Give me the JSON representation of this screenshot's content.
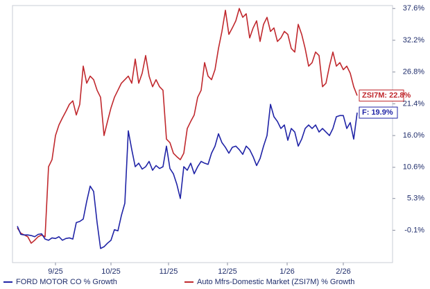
{
  "chart_data": {
    "type": "line",
    "grid": false,
    "legend": "bottom",
    "xlim": [
      -1.4,
      108.2
    ],
    "ylim": [
      -5.6,
      38.1
    ],
    "xticks": [
      {
        "value": 11,
        "label": "9/25"
      },
      {
        "value": 27,
        "label": "10/25"
      },
      {
        "value": 43.6,
        "label": "11/25"
      },
      {
        "value": 60.6,
        "label": "12/25"
      },
      {
        "value": 77.8,
        "label": "1/26"
      },
      {
        "value": 94,
        "label": "2/26"
      }
    ],
    "yticks": [
      {
        "value": 37.6,
        "label": "37.6%"
      },
      {
        "value": 32.2,
        "label": "32.2%"
      },
      {
        "value": 26.8,
        "label": "26.8%"
      },
      {
        "value": 21.4,
        "label": "21.4%"
      },
      {
        "value": 16.0,
        "label": "16.0%"
      },
      {
        "value": 10.6,
        "label": "10.6%"
      },
      {
        "value": 5.3,
        "label": "5.3%"
      },
      {
        "value": -0.1,
        "label": "-0.1%"
      }
    ],
    "series": [
      {
        "name": "FORD MOTOR CO % Growth",
        "color": "#1f23a6",
        "end_label": "F: 19.9%",
        "values": [
          0.6,
          -0.8,
          -0.9,
          -0.9,
          -1.0,
          -1.2,
          -0.8,
          -0.7,
          -1.6,
          -1.8,
          -1.4,
          -1.5,
          -1.2,
          -1.8,
          -1.5,
          -1.4,
          -1.6,
          1.2,
          1.4,
          1.8,
          4.8,
          7.4,
          6.5,
          1.2,
          -3.2,
          -2.9,
          -2.3,
          -1.8,
          0.0,
          -0.2,
          2.4,
          4.5,
          16.8,
          13.6,
          10.7,
          11.3,
          10.3,
          10.7,
          11.6,
          10.1,
          10.9,
          10.4,
          10.7,
          14.2,
          10.4,
          9.5,
          7.7,
          5.3,
          10.7,
          10.1,
          11.3,
          9.5,
          10.7,
          11.6,
          11.3,
          11.1,
          13.0,
          14.2,
          16.3,
          14.8,
          14.0,
          13.0,
          14.0,
          14.2,
          13.6,
          12.8,
          14.2,
          13.6,
          12.4,
          10.9,
          12.1,
          14.2,
          16.0,
          21.3,
          19.2,
          18.4,
          17.2,
          17.8,
          15.2,
          17.2,
          16.6,
          14.2,
          15.4,
          17.2,
          17.8,
          17.2,
          17.8,
          16.6,
          17.2,
          16.6,
          16.0,
          17.2,
          19.2,
          19.4,
          19.4,
          17.2,
          18.2,
          15.4,
          19.9
        ]
      },
      {
        "name": "Auto Mfrs-Domestic Market (ZSI7M) % Growth",
        "color": "#c0282d",
        "end_label": "ZSI7M: 22.8%",
        "values": [
          0.3,
          -0.6,
          -0.9,
          -1.2,
          -2.3,
          -1.8,
          -1.2,
          -0.9,
          -1.2,
          10.7,
          11.9,
          16.0,
          17.8,
          19.0,
          20.1,
          21.3,
          21.9,
          19.5,
          21.3,
          27.8,
          24.9,
          26.1,
          25.5,
          23.7,
          22.5,
          16.0,
          18.4,
          20.7,
          22.5,
          23.7,
          24.9,
          25.5,
          26.1,
          24.9,
          29.0,
          24.9,
          26.6,
          29.6,
          26.1,
          24.3,
          25.5,
          24.3,
          23.7,
          15.4,
          14.8,
          13.0,
          12.4,
          11.9,
          13.0,
          17.2,
          18.4,
          19.5,
          22.5,
          23.7,
          28.4,
          26.1,
          25.5,
          27.2,
          30.8,
          33.7,
          37.3,
          33.2,
          34.3,
          35.5,
          37.6,
          36.1,
          36.7,
          32.6,
          34.3,
          35.5,
          32.0,
          34.9,
          36.1,
          33.7,
          34.3,
          32.0,
          32.6,
          33.7,
          33.2,
          30.8,
          30.2,
          34.9,
          33.2,
          30.8,
          27.8,
          28.4,
          30.2,
          29.6,
          24.3,
          24.9,
          27.8,
          30.2,
          27.8,
          28.4,
          27.2,
          27.8,
          26.6,
          24.3,
          22.8
        ]
      }
    ]
  }
}
